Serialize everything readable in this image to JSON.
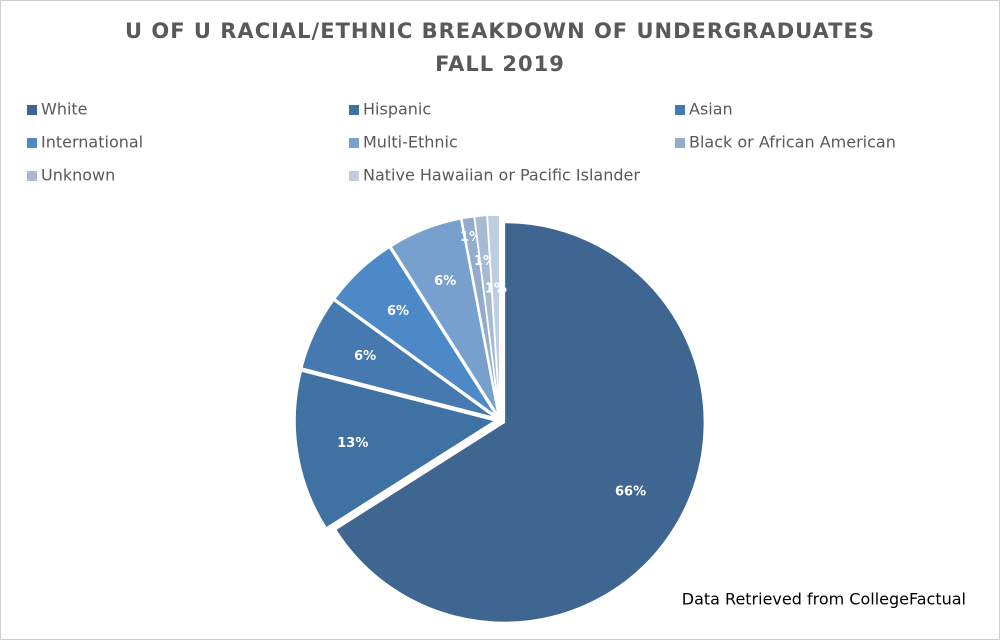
{
  "chart_data": {
    "type": "pie",
    "title": "U OF U RACIAL/ETHNIC BREAKDOWN OF UNDERGRADUATES",
    "subtitle": "FALL 2019",
    "annotation": "Data Retrieved from CollegeFactual",
    "categories": [
      "White",
      "Hispanic",
      "Asian",
      "International",
      "Multi-Ethnic",
      "Black or African American",
      "Unknown",
      "Native Hawaiian or Pacific Islander"
    ],
    "values": [
      66,
      13,
      6,
      6,
      6,
      1,
      1,
      1
    ],
    "value_labels": [
      "66%",
      "13%",
      "6%",
      "6%",
      "6%",
      "1%",
      "1%",
      "1%"
    ],
    "colors": [
      "#3e6690",
      "#3f71a3",
      "#4579b0",
      "#4e89c7",
      "#78a0cf",
      "#93acce",
      "#a8b9d4",
      "#c0cde0"
    ],
    "legend": "top"
  }
}
